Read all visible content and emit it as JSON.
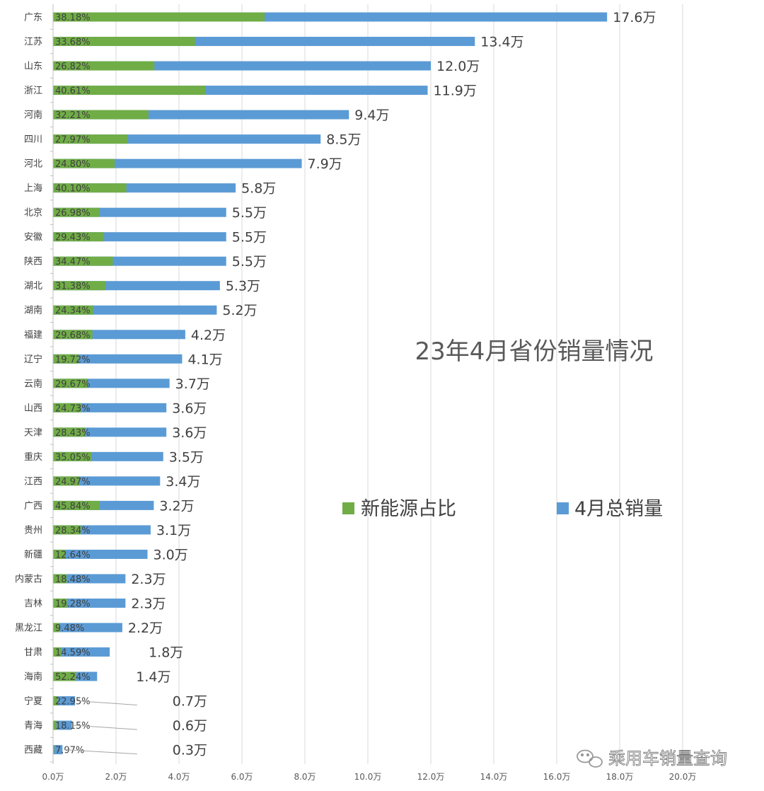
{
  "chart_data": {
    "type": "bar",
    "orientation": "horizontal",
    "title": "23年4月省份销量情况",
    "categories": [
      "广东",
      "江苏",
      "山东",
      "浙江",
      "河南",
      "四川",
      "河北",
      "上海",
      "北京",
      "安徽",
      "陕西",
      "湖北",
      "湖南",
      "福建",
      "辽宁",
      "云南",
      "山西",
      "天津",
      "重庆",
      "江西",
      "广西",
      "贵州",
      "新疆",
      "内蒙古",
      "吉林",
      "黑龙江",
      "甘肃",
      "海南",
      "宁夏",
      "青海",
      "西藏"
    ],
    "series": [
      {
        "name": "新能源占比",
        "color": "#70ad47",
        "values": [
          6.72,
          4.51,
          3.22,
          4.83,
          3.03,
          2.38,
          1.96,
          2.33,
          1.48,
          1.62,
          1.9,
          1.66,
          1.27,
          1.25,
          0.81,
          1.1,
          0.89,
          1.02,
          1.23,
          0.85,
          1.47,
          0.88,
          0.38,
          0.43,
          0.44,
          0.21,
          0.26,
          0.73,
          0.16,
          0.11,
          0.02
        ],
        "labels": [
          "38.18%",
          "33.68%",
          "26.82%",
          "40.61%",
          "32.21%",
          "27.97%",
          "24.80%",
          "40.10%",
          "26.98%",
          "29.43%",
          "34.47%",
          "31.38%",
          "24.34%",
          "29.68%",
          "19.72%",
          "29.67%",
          "24.73%",
          "28.43%",
          "35.05%",
          "24.97%",
          "45.84%",
          "28.34%",
          "12.64%",
          "18.48%",
          "19.28%",
          "9.48%",
          "14.59%",
          "52.24%",
          "22.95%",
          "18.15%",
          "7.97%"
        ]
      },
      {
        "name": "4月总销量",
        "color": "#5b9bd5",
        "values": [
          17.6,
          13.4,
          12.0,
          11.9,
          9.4,
          8.5,
          7.9,
          5.8,
          5.5,
          5.5,
          5.5,
          5.3,
          5.2,
          4.2,
          4.1,
          3.7,
          3.6,
          3.6,
          3.5,
          3.4,
          3.2,
          3.1,
          3.0,
          2.3,
          2.3,
          2.2,
          1.8,
          1.4,
          0.7,
          0.6,
          0.3
        ],
        "labels": [
          "17.6万",
          "13.4万",
          "12.0万",
          "11.9万",
          "9.4万",
          "8.5万",
          "7.9万",
          "5.8万",
          "5.5万",
          "5.5万",
          "5.5万",
          "5.3万",
          "5.2万",
          "4.2万",
          "4.1万",
          "3.7万",
          "3.6万",
          "3.6万",
          "3.5万",
          "3.4万",
          "3.2万",
          "3.1万",
          "3.0万",
          "2.3万",
          "2.3万",
          "2.2万",
          "1.8万",
          "1.4万",
          "0.7万",
          "0.6万",
          "0.3万"
        ]
      }
    ],
    "xlim": [
      0,
      20
    ],
    "x_ticks": [
      "0.0万",
      "2.0万",
      "4.0万",
      "6.0万",
      "8.0万",
      "10.0万",
      "12.0万",
      "14.0万",
      "16.0万",
      "18.0万",
      "20.0万"
    ],
    "grid": true,
    "legend_position": "right-middle"
  },
  "watermark": "乘用车销量查询"
}
